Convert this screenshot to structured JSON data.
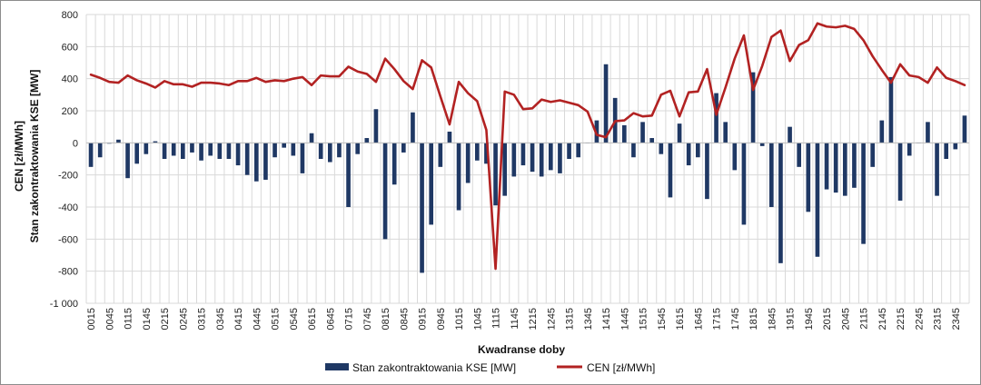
{
  "chart_data": {
    "type": "bar+line",
    "title": "",
    "xlabel": "Kwadranse doby",
    "ylabel_line1": "CEN [zł/MWh]",
    "ylabel_line2": "Stan zakontraktowania KSE [MW]",
    "ylim": [
      -1000,
      800
    ],
    "ytick_values": [
      -1000,
      -800,
      -600,
      -400,
      -200,
      0,
      200,
      400,
      600,
      800
    ],
    "ytick_labels": [
      "-1 000",
      "-800",
      "-600",
      "-400",
      "-200",
      "0",
      "200",
      "400",
      "600",
      "800"
    ],
    "grid": true,
    "legend_position": "bottom",
    "xtick_labels": [
      "0015",
      "0045",
      "0115",
      "0145",
      "0215",
      "0245",
      "0315",
      "0345",
      "0415",
      "0445",
      "0515",
      "0545",
      "0615",
      "0645",
      "0715",
      "0745",
      "0815",
      "0845",
      "0915",
      "0945",
      "1015",
      "1045",
      "1115",
      "1145",
      "1215",
      "1245",
      "1315",
      "1345",
      "1415",
      "1445",
      "1515",
      "1545",
      "1615",
      "1645",
      "1715",
      "1745",
      "1815",
      "1845",
      "1915",
      "1945",
      "2015",
      "2045",
      "2115",
      "2145",
      "2215",
      "2245",
      "2315",
      "2345"
    ],
    "categories": [
      "0015",
      "0030",
      "0045",
      "0100",
      "0115",
      "0130",
      "0145",
      "0200",
      "0215",
      "0230",
      "0245",
      "0300",
      "0315",
      "0330",
      "0345",
      "0400",
      "0415",
      "0430",
      "0445",
      "0500",
      "0515",
      "0530",
      "0545",
      "0600",
      "0615",
      "0630",
      "0645",
      "0700",
      "0715",
      "0730",
      "0745",
      "0800",
      "0815",
      "0830",
      "0845",
      "0900",
      "0915",
      "0930",
      "0945",
      "1000",
      "1015",
      "1030",
      "1045",
      "1100",
      "1115",
      "1130",
      "1145",
      "1200",
      "1215",
      "1230",
      "1245",
      "1300",
      "1315",
      "1330",
      "1345",
      "1400",
      "1415",
      "1430",
      "1445",
      "1500",
      "1515",
      "1530",
      "1545",
      "1600",
      "1615",
      "1630",
      "1645",
      "1700",
      "1715",
      "1730",
      "1745",
      "1800",
      "1815",
      "1830",
      "1845",
      "1900",
      "1915",
      "1930",
      "1945",
      "2000",
      "2015",
      "2030",
      "2045",
      "2100",
      "2115",
      "2130",
      "2145",
      "2200",
      "2215",
      "2230",
      "2245",
      "2300",
      "2315",
      "2330",
      "2345",
      "0000"
    ],
    "series": [
      {
        "name": "Stan zakontraktowania KSE [MW]",
        "kind": "bar",
        "color": "#1f3864",
        "values": [
          -150,
          -90,
          -5,
          20,
          -220,
          -130,
          -70,
          10,
          -100,
          -80,
          -100,
          -60,
          -110,
          -80,
          -100,
          -100,
          -140,
          -200,
          -240,
          -230,
          -90,
          -30,
          -80,
          -190,
          60,
          -100,
          -120,
          -90,
          -400,
          -70,
          30,
          210,
          -600,
          -260,
          -60,
          190,
          -810,
          -510,
          -150,
          70,
          -420,
          -250,
          -110,
          -130,
          -390,
          -330,
          -210,
          -140,
          -180,
          -210,
          -170,
          -190,
          -100,
          -90,
          0,
          140,
          490,
          280,
          110,
          -90,
          130,
          30,
          -70,
          -340,
          120,
          -140,
          -90,
          -350,
          310,
          130,
          -170,
          -510,
          440,
          -20,
          -400,
          -750,
          100,
          -150,
          -430,
          -710,
          -290,
          -310,
          -330,
          -280,
          -630,
          -150,
          140,
          410,
          -360,
          -80,
          0,
          130,
          -330,
          -100,
          -40,
          170
        ]
      },
      {
        "name": "CEN [zł/MWh]",
        "kind": "line",
        "color": "#b22222",
        "values": [
          425,
          405,
          380,
          375,
          420,
          390,
          370,
          345,
          385,
          365,
          365,
          350,
          375,
          375,
          370,
          360,
          385,
          385,
          405,
          380,
          390,
          385,
          400,
          410,
          360,
          420,
          415,
          415,
          475,
          445,
          430,
          380,
          525,
          460,
          385,
          335,
          515,
          470,
          290,
          115,
          380,
          310,
          260,
          80,
          -785,
          320,
          300,
          210,
          215,
          270,
          255,
          265,
          250,
          235,
          195,
          50,
          35,
          135,
          140,
          185,
          165,
          170,
          300,
          325,
          165,
          315,
          320,
          460,
          175,
          345,
          525,
          670,
          330,
          480,
          660,
          700,
          510,
          610,
          640,
          745,
          725,
          720,
          730,
          710,
          640,
          540,
          455,
          375,
          490,
          420,
          410,
          375,
          470,
          405,
          385,
          360
        ]
      }
    ]
  },
  "legend": {
    "bar_label": "Stan zakontraktowania KSE [MW]",
    "line_label": "CEN [zł/MWh]"
  }
}
